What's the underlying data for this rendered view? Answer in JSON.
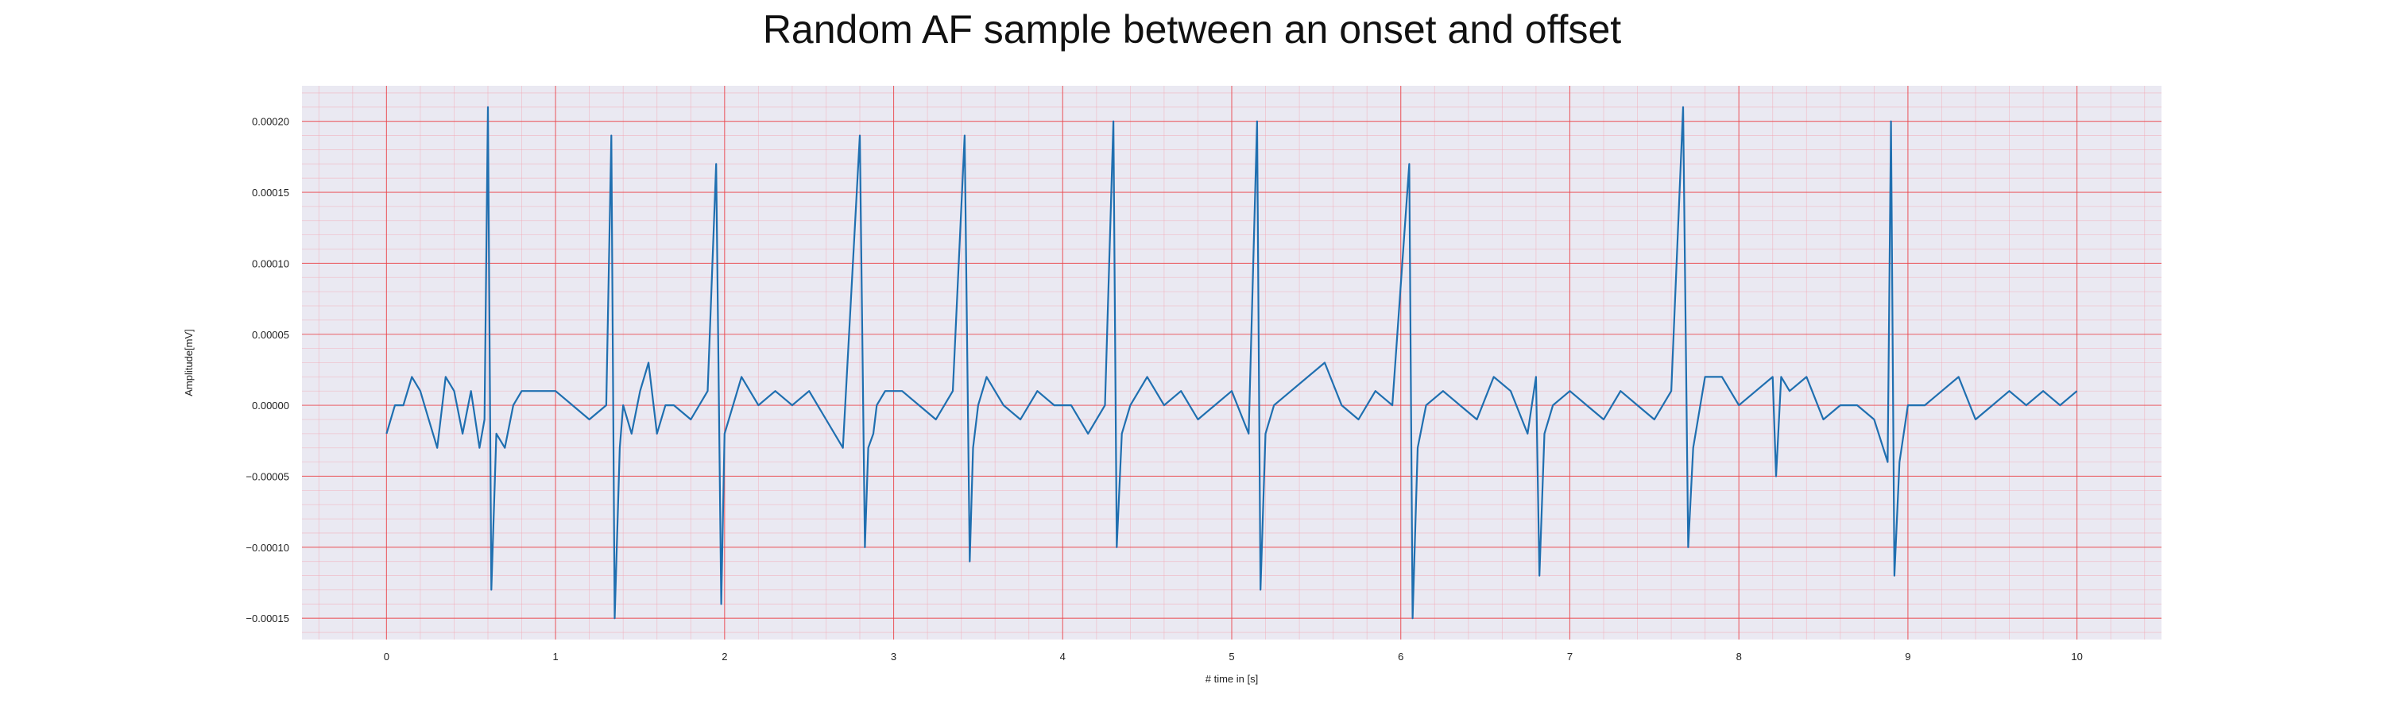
{
  "chart_data": {
    "type": "line",
    "title": "Random AF sample between an onset and offset",
    "xlabel": "# time in [s]",
    "ylabel": "Amplitude[mV]",
    "xlim": [
      -0.5,
      10.5
    ],
    "ylim": [
      -0.000165,
      0.000225
    ],
    "x_ticks": [
      0,
      1,
      2,
      3,
      4,
      5,
      6,
      7,
      8,
      9,
      10
    ],
    "x_tick_labels": [
      "0",
      "1",
      "2",
      "3",
      "4",
      "5",
      "6",
      "7",
      "8",
      "9",
      "10"
    ],
    "y_ticks": [
      -0.00015,
      -0.0001,
      -5e-05,
      0,
      5e-05,
      0.0001,
      0.00015,
      0.0002
    ],
    "y_tick_labels": [
      "−0.00015",
      "−0.00010",
      "−0.00005",
      "0.00000",
      "0.00005",
      "0.00010",
      "0.00015",
      "0.00020"
    ],
    "grid": true,
    "minor_grid": true,
    "colors": {
      "line": "#1f6fb0",
      "plot_background": "#eae9f2",
      "major_grid": "#e8474c",
      "minor_grid": "#f2a6b3"
    },
    "series": [
      {
        "values_note": "",
        "x": [
          0.0,
          0.05,
          0.1,
          0.15,
          0.2,
          0.25,
          0.3,
          0.35,
          0.4,
          0.45,
          0.5,
          0.55,
          0.58,
          0.6,
          0.62,
          0.65,
          0.7,
          0.75,
          0.8,
          0.9,
          1.0,
          1.1,
          1.2,
          1.3,
          1.33,
          1.35,
          1.38,
          1.4,
          1.45,
          1.5,
          1.55,
          1.6,
          1.65,
          1.7,
          1.8,
          1.9,
          1.95,
          1.98,
          2.0,
          2.05,
          2.1,
          2.2,
          2.3,
          2.4,
          2.5,
          2.6,
          2.7,
          2.8,
          2.83,
          2.85,
          2.88,
          2.9,
          2.95,
          3.05,
          3.15,
          3.25,
          3.35,
          3.42,
          3.45,
          3.47,
          3.5,
          3.55,
          3.65,
          3.75,
          3.85,
          3.95,
          4.05,
          4.15,
          4.25,
          4.3,
          4.32,
          4.35,
          4.4,
          4.5,
          4.6,
          4.7,
          4.8,
          4.9,
          5.0,
          5.1,
          5.15,
          5.17,
          5.2,
          5.25,
          5.35,
          5.45,
          5.55,
          5.65,
          5.75,
          5.85,
          5.95,
          6.05,
          6.07,
          6.1,
          6.15,
          6.25,
          6.35,
          6.45,
          6.55,
          6.65,
          6.75,
          6.8,
          6.82,
          6.85,
          6.9,
          7.0,
          7.1,
          7.2,
          7.3,
          7.4,
          7.5,
          7.6,
          7.67,
          7.7,
          7.73,
          7.8,
          7.9,
          8.0,
          8.1,
          8.2,
          8.22,
          8.25,
          8.3,
          8.4,
          8.5,
          8.6,
          8.7,
          8.8,
          8.88,
          8.9,
          8.92,
          8.95,
          9.0,
          9.1,
          9.2,
          9.3,
          9.4,
          9.5,
          9.6,
          9.7,
          9.8,
          9.9,
          10.0
        ],
        "y": [
          -2e-05,
          0.0,
          0.0,
          2e-05,
          1e-05,
          -1e-05,
          -3e-05,
          2e-05,
          1e-05,
          -2e-05,
          1e-05,
          -3e-05,
          -1e-05,
          0.00021,
          -0.00013,
          -2e-05,
          -3e-05,
          0.0,
          1e-05,
          1e-05,
          1e-05,
          0.0,
          -1e-05,
          0.0,
          0.00019,
          -0.00015,
          -3e-05,
          0.0,
          -2e-05,
          1e-05,
          3e-05,
          -2e-05,
          0.0,
          0.0,
          -1e-05,
          1e-05,
          0.00017,
          -0.00014,
          -2e-05,
          0.0,
          2e-05,
          0.0,
          1e-05,
          0.0,
          1e-05,
          -1e-05,
          -3e-05,
          0.00019,
          -0.0001,
          -3e-05,
          -2e-05,
          0.0,
          1e-05,
          1e-05,
          0.0,
          -1e-05,
          1e-05,
          0.00019,
          -0.00011,
          -3e-05,
          0.0,
          2e-05,
          0.0,
          -1e-05,
          1e-05,
          0.0,
          0.0,
          -2e-05,
          0.0,
          0.0002,
          -0.0001,
          -2e-05,
          0.0,
          2e-05,
          0.0,
          1e-05,
          -1e-05,
          0.0,
          1e-05,
          -2e-05,
          0.0002,
          -0.00013,
          -2e-05,
          0.0,
          1e-05,
          2e-05,
          3e-05,
          0.0,
          -1e-05,
          1e-05,
          0.0,
          0.00017,
          -0.00015,
          -3e-05,
          0.0,
          1e-05,
          0.0,
          -1e-05,
          2e-05,
          1e-05,
          -2e-05,
          2e-05,
          -0.00012,
          -2e-05,
          0.0,
          1e-05,
          0.0,
          -1e-05,
          1e-05,
          0.0,
          -1e-05,
          1e-05,
          0.00021,
          -0.0001,
          -3e-05,
          2e-05,
          2e-05,
          0.0,
          1e-05,
          2e-05,
          -5e-05,
          2e-05,
          1e-05,
          2e-05,
          -1e-05,
          0.0,
          0.0,
          -1e-05,
          -4e-05,
          0.0002,
          -0.00012,
          -4e-05,
          0.0,
          0.0,
          1e-05,
          2e-05,
          -1e-05,
          0.0,
          1e-05,
          0.0,
          1e-05,
          0.0,
          1e-05
        ]
      }
    ]
  }
}
